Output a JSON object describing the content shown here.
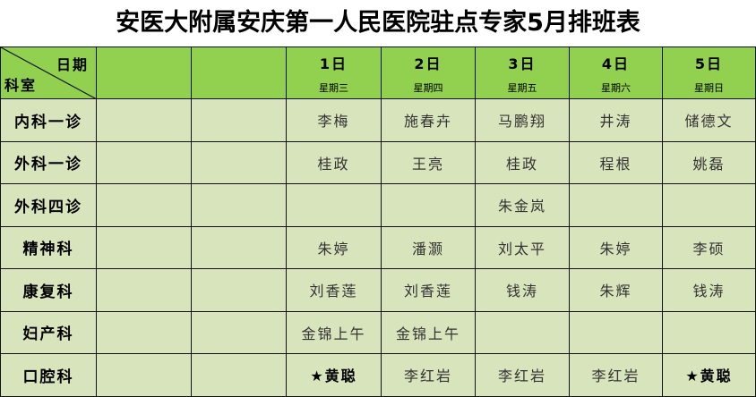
{
  "title": "安医大附属安庆第一人民医院驻点专家5月排班表",
  "corner": {
    "top_label": "日期",
    "bottom_label": "科室"
  },
  "days": [
    {
      "date": "1日",
      "weekday": "星期三"
    },
    {
      "date": "2日",
      "weekday": "星期四"
    },
    {
      "date": "3日",
      "weekday": "星期五"
    },
    {
      "date": "4日",
      "weekday": "星期六"
    },
    {
      "date": "5日",
      "weekday": "星期日"
    }
  ],
  "rows": [
    {
      "dept": "内科一诊",
      "cells": [
        "李梅",
        "施春卉",
        "马鹏翔",
        "井涛",
        "储德文"
      ]
    },
    {
      "dept": "外科一诊",
      "cells": [
        "桂政",
        "王亮",
        "桂政",
        "程根",
        "姚磊"
      ]
    },
    {
      "dept": "外科四诊",
      "cells": [
        "",
        "",
        "朱金岚",
        "",
        ""
      ]
    },
    {
      "dept": "精神科",
      "cells": [
        "朱婷",
        "潘灏",
        "刘太平",
        "朱婷",
        "李硕"
      ]
    },
    {
      "dept": "康复科",
      "cells": [
        "刘香莲",
        "刘香莲",
        "钱涛",
        "朱辉",
        "钱涛"
      ]
    },
    {
      "dept": "妇产科",
      "cells": [
        "金锦上午",
        "金锦上午",
        "",
        "",
        ""
      ]
    },
    {
      "dept": "口腔科",
      "cells": [
        "★黄聪",
        "李红岩",
        "李红岩",
        "李红岩",
        "★黄聪"
      ]
    }
  ],
  "colors": {
    "header": "#92d050",
    "body": "#d8e4bc"
  }
}
